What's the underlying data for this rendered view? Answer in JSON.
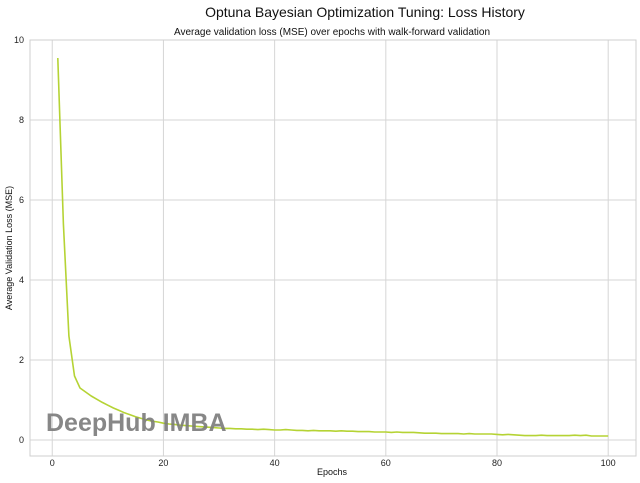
{
  "chart_data": {
    "type": "line",
    "title": "Optuna Bayesian Optimization Tuning: Loss History",
    "subtitle": "Average validation loss (MSE) over epochs with walk-forward validation",
    "xlabel": "Epochs",
    "ylabel": "Average Validation Loss (MSE)",
    "xlim": [
      -4,
      105
    ],
    "ylim": [
      -0.4,
      10
    ],
    "xticks": [
      0,
      20,
      40,
      60,
      80,
      100
    ],
    "yticks": [
      0,
      2,
      4,
      6,
      8,
      10
    ],
    "grid": true,
    "line_color": "#b5d334",
    "x": [
      1,
      2,
      3,
      4,
      5,
      6,
      7,
      8,
      9,
      10,
      11,
      12,
      13,
      14,
      15,
      16,
      17,
      18,
      19,
      20,
      21,
      22,
      23,
      24,
      25,
      26,
      27,
      28,
      29,
      30,
      31,
      32,
      33,
      34,
      35,
      36,
      37,
      38,
      39,
      40,
      41,
      42,
      43,
      44,
      45,
      46,
      47,
      48,
      49,
      50,
      51,
      52,
      53,
      54,
      55,
      56,
      57,
      58,
      59,
      60,
      61,
      62,
      63,
      64,
      65,
      66,
      67,
      68,
      69,
      70,
      71,
      72,
      73,
      74,
      75,
      76,
      77,
      78,
      79,
      80,
      81,
      82,
      83,
      84,
      85,
      86,
      87,
      88,
      89,
      90,
      91,
      92,
      93,
      94,
      95,
      96,
      97,
      98,
      99,
      100
    ],
    "y": [
      9.55,
      5.4,
      2.6,
      1.6,
      1.3,
      1.2,
      1.1,
      1.02,
      0.94,
      0.87,
      0.8,
      0.74,
      0.68,
      0.63,
      0.58,
      0.54,
      0.5,
      0.47,
      0.45,
      0.42,
      0.4,
      0.39,
      0.37,
      0.36,
      0.35,
      0.34,
      0.33,
      0.32,
      0.31,
      0.3,
      0.29,
      0.29,
      0.28,
      0.28,
      0.27,
      0.27,
      0.26,
      0.27,
      0.26,
      0.25,
      0.25,
      0.26,
      0.25,
      0.24,
      0.24,
      0.23,
      0.24,
      0.23,
      0.23,
      0.23,
      0.22,
      0.23,
      0.22,
      0.22,
      0.21,
      0.21,
      0.21,
      0.2,
      0.2,
      0.2,
      0.19,
      0.2,
      0.19,
      0.19,
      0.19,
      0.18,
      0.17,
      0.17,
      0.17,
      0.16,
      0.16,
      0.16,
      0.16,
      0.15,
      0.16,
      0.15,
      0.15,
      0.15,
      0.15,
      0.14,
      0.13,
      0.14,
      0.13,
      0.12,
      0.11,
      0.11,
      0.11,
      0.12,
      0.11,
      0.11,
      0.11,
      0.11,
      0.11,
      0.12,
      0.11,
      0.12,
      0.1,
      0.1,
      0.1,
      0.1
    ]
  },
  "watermark": "DeepHub IMBA"
}
